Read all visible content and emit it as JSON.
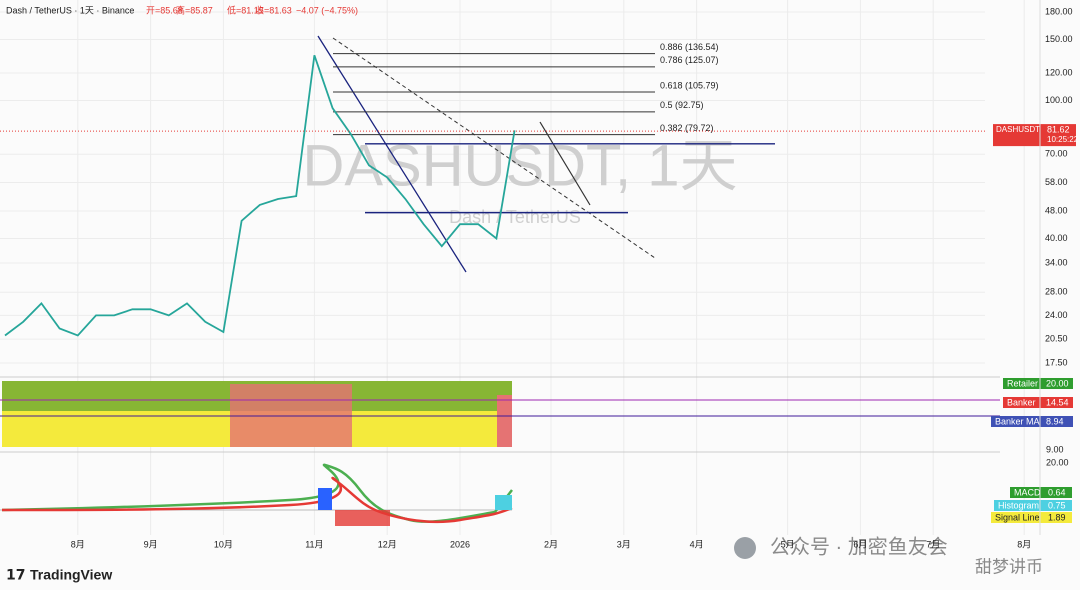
{
  "header": {
    "symbol": "Dash / TetherUS · 1天 · Binance",
    "open": "开=85.68",
    "high": "高=85.87",
    "low": "低=81.15",
    "close": "收=81.63",
    "change": "−4.07 (−4.75%)"
  },
  "chart_data": {
    "type": "line",
    "title": "DASHUSDT, 1天",
    "subtitle": "Dash / TetherUS",
    "color": "#26a69a",
    "log_scale": true,
    "categories": [
      null,
      null,
      null,
      null,
      "8月",
      null,
      null,
      null,
      "9月",
      null,
      null,
      null,
      "10月",
      null,
      null,
      null,
      null,
      "11月",
      null,
      null,
      null,
      "12月",
      null,
      null,
      null,
      "2026",
      null,
      null,
      null,
      null,
      "2月",
      null,
      null,
      null,
      "3月",
      null,
      null,
      null,
      "4月",
      null,
      null,
      null,
      null,
      "5月",
      null,
      null,
      null,
      "6月",
      null,
      null,
      null,
      "7月",
      null,
      null,
      null,
      null,
      "8月",
      null
    ],
    "values": [
      21,
      23,
      26,
      22,
      21,
      24,
      24,
      25,
      25,
      24,
      26,
      23,
      21.5,
      45,
      50,
      52,
      53,
      135,
      95,
      80,
      65,
      60,
      52,
      44,
      38,
      44,
      44,
      40,
      82,
      null,
      null,
      null,
      null,
      null,
      null,
      null,
      null,
      null,
      null,
      null,
      null,
      null,
      null,
      null,
      null,
      null,
      null,
      null,
      null,
      null,
      null,
      null,
      null,
      null,
      null,
      null,
      null,
      null
    ],
    "ylim": [
      17.5,
      180
    ],
    "yticks": [
      {
        "value": 180,
        "label": "180.00"
      },
      {
        "value": 150,
        "label": "150.00"
      },
      {
        "value": 120,
        "label": "120.00"
      },
      {
        "value": 100,
        "label": "100.00"
      },
      {
        "value": 70,
        "label": "70.00"
      },
      {
        "value": 58,
        "label": "58.00"
      },
      {
        "value": 48,
        "label": "48.00"
      },
      {
        "value": 40,
        "label": "40.00"
      },
      {
        "value": 34,
        "label": "34.00"
      },
      {
        "value": 28,
        "label": "28.00"
      },
      {
        "value": 24,
        "label": "24.00"
      },
      {
        "value": 20.5,
        "label": "20.50"
      },
      {
        "value": 17.5,
        "label": "17.50"
      }
    ],
    "fib_levels": [
      {
        "value": 136.54,
        "label": "0.886 (136.54)"
      },
      {
        "value": 125.07,
        "label": "0.786 (125.07)"
      },
      {
        "value": 105.79,
        "label": "0.618 (105.79)"
      },
      {
        "value": 92.75,
        "label": "0.5 (92.75)"
      },
      {
        "value": 79.72,
        "label": "0.382 (79.72)"
      }
    ],
    "support_lines": [
      75,
      47.5
    ],
    "last_price": 81.62,
    "price_tag": "DASHUSDT",
    "countdown": "10:25:22"
  },
  "panels": {
    "retailer": "Retailer",
    "retailer_value": "20.00",
    "banker": "Banker",
    "banker_value": "14.54",
    "banker_ma": "Banker MA",
    "banker_ma_value": "8.94",
    "axis_low": "9.00",
    "axis_high": "20.00",
    "macd": "MACD",
    "macd_value": "0.64",
    "histogram": "Histogram",
    "histogram_value": "0.75",
    "signal": "Signal Line",
    "signal_value": "1.89"
  },
  "footer": {
    "brand": "TradingView",
    "wechat": "公众号 · 加密鱼友会",
    "author": "甜梦讲币"
  }
}
